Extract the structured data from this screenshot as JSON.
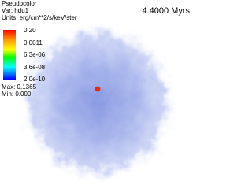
{
  "legend": {
    "title": "Pseudocolor",
    "variable": "Var: hdu1",
    "units": "Units: erg/cm**2/s/keV/ster",
    "colorbar_labels": [
      "0.20",
      "0.0011",
      "6.3e-06",
      "3.6e-08",
      "2.0e-10"
    ],
    "max": "Max: 0.1365",
    "min": "Min: 0.000"
  },
  "time": "4.4000 Myrs"
}
